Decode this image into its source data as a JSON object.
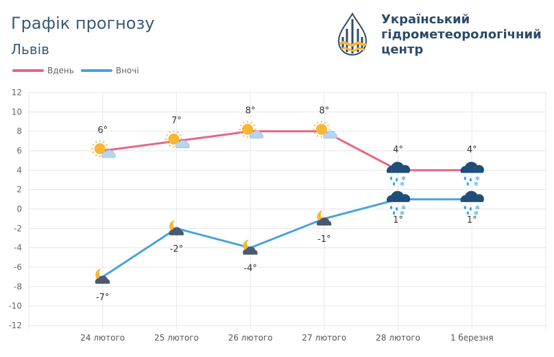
{
  "header": {
    "title": "Графік прогнозу",
    "city": "Львів"
  },
  "organization": {
    "lines": [
      "Український",
      "гідрометеорологічний",
      "центр"
    ],
    "logo_icon": "water-drop-logo-icon"
  },
  "colors": {
    "day": "#e8667f",
    "night": "#46a3dc",
    "sun": "#f7b733",
    "cloud": "#b8d4ef",
    "dark_cloud": "#1f4e79",
    "grid": "#e6e6e6"
  },
  "chart_data": {
    "type": "line",
    "title": "Графік прогнозу",
    "categories": [
      "24 лютого",
      "25 лютого",
      "26 лютого",
      "27 лютого",
      "28 лютого",
      "1 березня"
    ],
    "ylim": [
      -12,
      12
    ],
    "yticks": [
      12,
      10,
      8,
      6,
      4,
      2,
      0,
      -2,
      -4,
      -6,
      -8,
      -10,
      -12
    ],
    "grid": true,
    "legend_position": "top-left",
    "series": [
      {
        "name": "Вдень",
        "values": [
          6,
          7,
          8,
          8,
          4,
          4
        ],
        "labels": [
          "6°",
          "7°",
          "8°",
          "8°",
          "4°",
          "4°"
        ],
        "icons": [
          "sun-cloud-icon",
          "sun-cloud-icon",
          "sun-cloud-icon",
          "sun-cloud-icon",
          "rain-snow-cloud-icon",
          "rain-snow-cloud-icon"
        ]
      },
      {
        "name": "Вночі",
        "values": [
          -7,
          -2,
          -4,
          -1,
          1,
          1
        ],
        "labels": [
          "-7°",
          "-2°",
          "-4°",
          "-1°",
          "1°",
          "1°"
        ],
        "icons": [
          "moon-cloud-icon",
          "moon-cloud-icon",
          "moon-cloud-icon",
          "moon-cloud-icon",
          "rain-snow-cloud-icon",
          "rain-snow-cloud-icon"
        ]
      }
    ]
  }
}
